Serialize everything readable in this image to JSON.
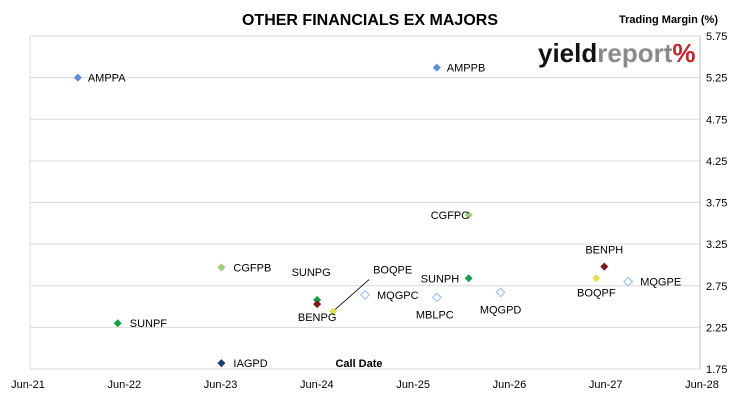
{
  "chart_data": {
    "type": "scatter",
    "title": "OTHER FINANCIALS EX MAJORS",
    "ylabel": "Trading Margin (%)",
    "xlabel": "Call Date",
    "x_ticks": [
      "Jun-21",
      "Jun-22",
      "Jun-23",
      "Jun-24",
      "Jun-25",
      "Jun-26",
      "Jun-27",
      "Jun-28"
    ],
    "xlim": [
      "2021-06",
      "2028-06"
    ],
    "y_ticks": [
      "1.75",
      "2.25",
      "2.75",
      "3.25",
      "3.75",
      "4.25",
      "4.75",
      "5.25",
      "5.75"
    ],
    "ylim": [
      1.75,
      5.75
    ],
    "y_axis_side": "right",
    "grid": "horizontal",
    "points": [
      {
        "label": "AMPPA",
        "x": "2021-12",
        "y": 5.25,
        "color": "#5b8fcf",
        "filled": true
      },
      {
        "label": "AMPPB",
        "x": "2025-09",
        "y": 5.37,
        "color": "#5b8fcf",
        "filled": true
      },
      {
        "label": "SUNPF",
        "x": "2022-05",
        "y": 2.3,
        "color": "#12a04a",
        "filled": true
      },
      {
        "label": "CGFPB",
        "x": "2023-06",
        "y": 2.97,
        "color": "#9ccc7c",
        "filled": true
      },
      {
        "label": "IAGPD",
        "x": "2023-06",
        "y": 1.82,
        "color": "#1f3a7a",
        "filled": true
      },
      {
        "label": "SUNPG",
        "x": "2024-06",
        "y": 2.58,
        "color": "#12a04a",
        "filled": true
      },
      {
        "label": "BENPG",
        "x": "2024-06",
        "y": 2.53,
        "color": "#7a1a1a",
        "filled": true
      },
      {
        "label": "BOQPE",
        "x": "2024-08",
        "y": 2.44,
        "color": "#e0e050",
        "filled": true
      },
      {
        "label": "MQGPC",
        "x": "2024-12",
        "y": 2.64,
        "color": "#aac4ea",
        "filled": false
      },
      {
        "label": "MBLPC",
        "x": "2025-09",
        "y": 2.61,
        "color": "#aac4ea",
        "filled": false
      },
      {
        "label": "CGFPC",
        "x": "2026-01",
        "y": 3.6,
        "color": "#9ccc7c",
        "filled": true
      },
      {
        "label": "SUNPH",
        "x": "2026-01",
        "y": 2.84,
        "color": "#12a04a",
        "filled": true
      },
      {
        "label": "MQGPD",
        "x": "2026-05",
        "y": 2.67,
        "color": "#aac4ea",
        "filled": false
      },
      {
        "label": "BOQPF",
        "x": "2027-05",
        "y": 2.84,
        "color": "#e0e050",
        "filled": true
      },
      {
        "label": "BENPH",
        "x": "2027-06",
        "y": 2.98,
        "color": "#7a1a1a",
        "filled": true
      },
      {
        "label": "MQGPE",
        "x": "2027-09",
        "y": 2.8,
        "color": "#aac4ea",
        "filled": false
      }
    ]
  },
  "logo": {
    "part1": "yield",
    "part2": "report",
    "part3": "%"
  }
}
